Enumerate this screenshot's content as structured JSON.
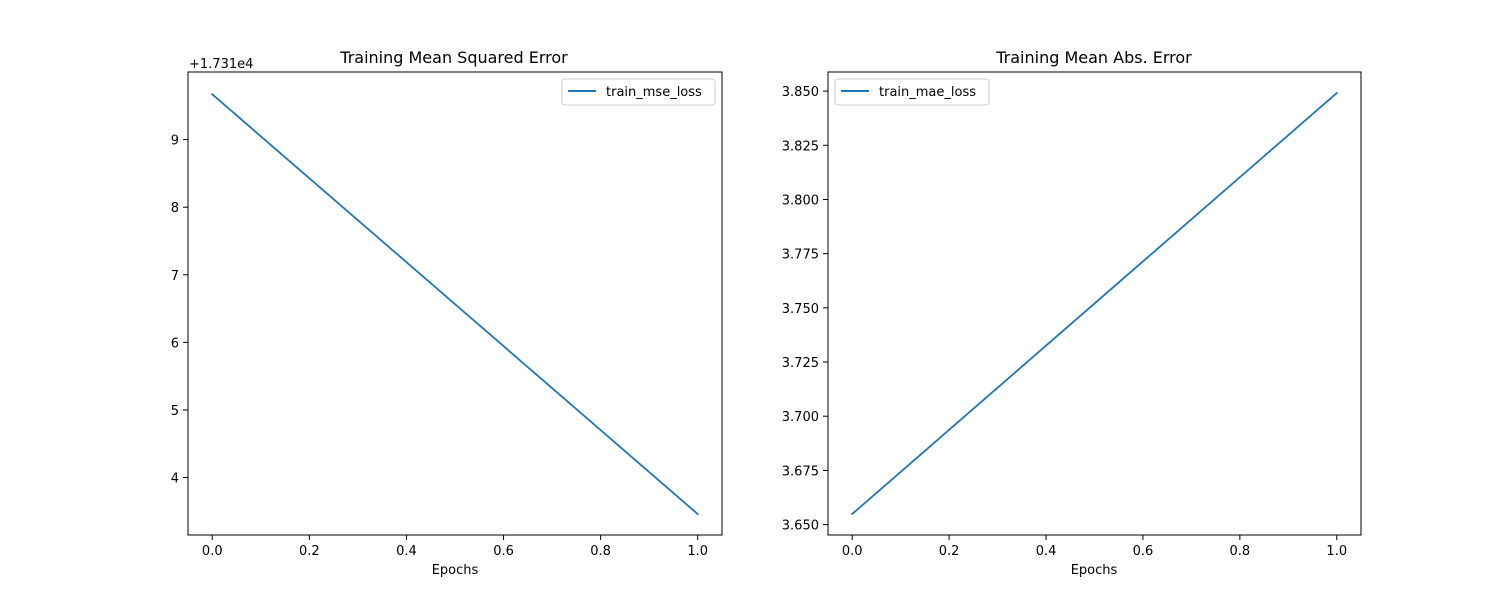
{
  "chart_data": [
    {
      "type": "line",
      "title": "Training Mean Squared Error",
      "xlabel": "Epochs",
      "ylabel": "",
      "offset_text": "+1.731e4",
      "y_offset": 17310,
      "x_ticks": [
        "0.0",
        "0.2",
        "0.4",
        "0.6",
        "0.8",
        "1.0"
      ],
      "y_ticks": [
        "4",
        "5",
        "6",
        "7",
        "8",
        "9"
      ],
      "xlim": [
        -0.05,
        1.05
      ],
      "ylim": [
        17313.15,
        17320.0
      ],
      "grid": false,
      "legend_position": "upper right",
      "series": [
        {
          "name": "train_mse_loss",
          "color": "#1f77b4",
          "x": [
            0,
            1
          ],
          "y": [
            17319.67,
            17313.46
          ]
        }
      ]
    },
    {
      "type": "line",
      "title": "Training Mean Abs. Error",
      "xlabel": "Epochs",
      "ylabel": "",
      "x_ticks": [
        "0.0",
        "0.2",
        "0.4",
        "0.6",
        "0.8",
        "1.0"
      ],
      "y_ticks": [
        "3.650",
        "3.675",
        "3.700",
        "3.725",
        "3.750",
        "3.775",
        "3.800",
        "3.825",
        "3.850"
      ],
      "xlim": [
        -0.05,
        1.05
      ],
      "ylim": [
        3.6452,
        3.8588
      ],
      "grid": false,
      "legend_position": "upper left",
      "series": [
        {
          "name": "train_mae_loss",
          "color": "#1f77b4",
          "x": [
            0,
            1
          ],
          "y": [
            3.6549,
            3.8491
          ]
        }
      ]
    }
  ]
}
